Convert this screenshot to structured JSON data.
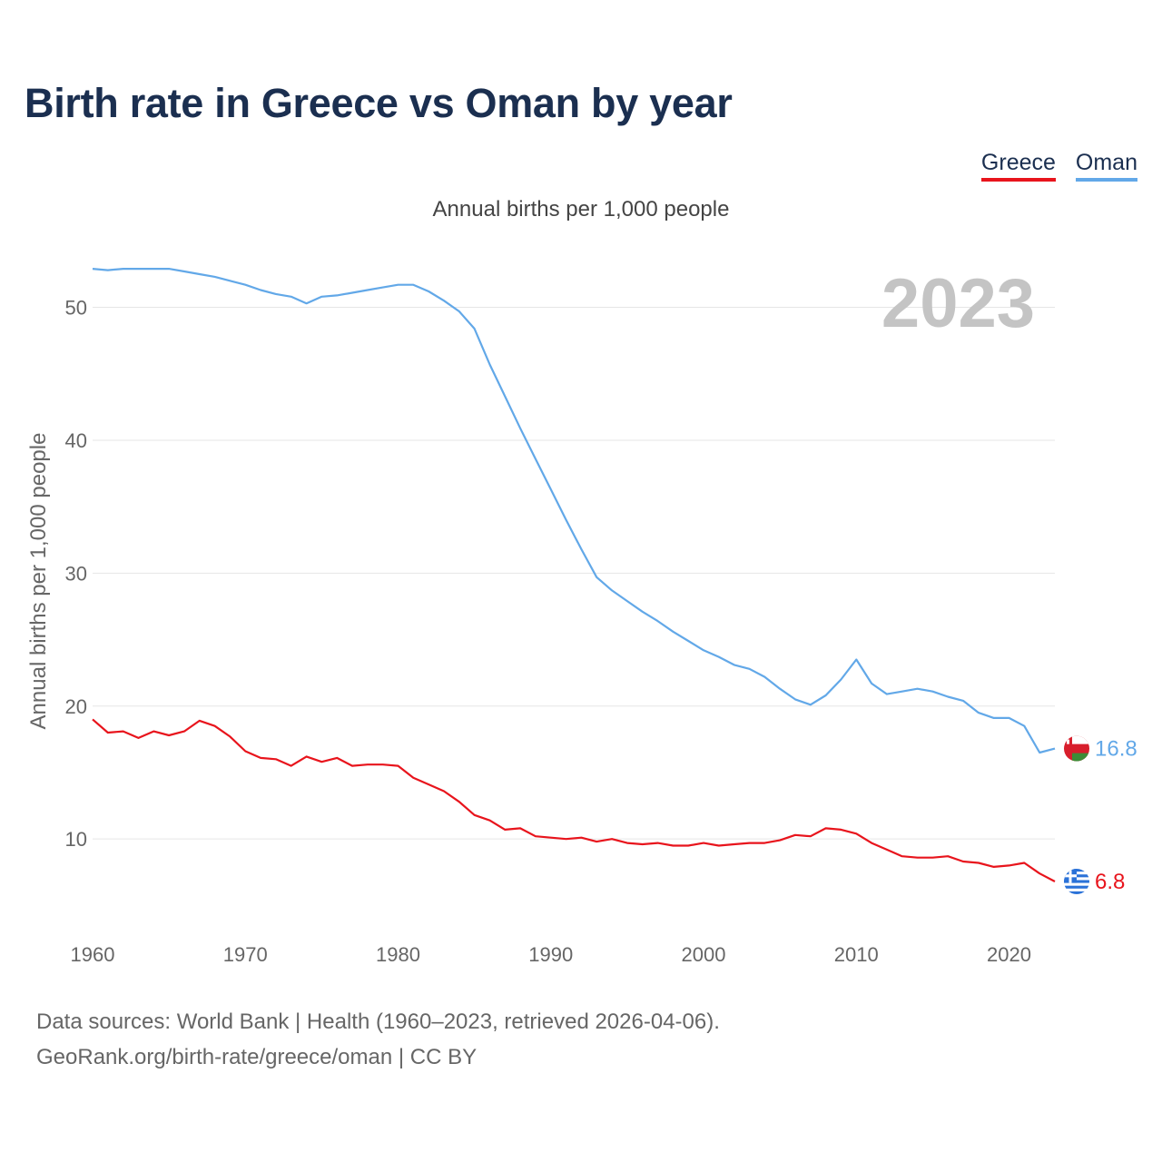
{
  "title": "Birth rate in Greece vs Oman by year",
  "subtitle": "Annual births per 1,000 people",
  "legend": [
    {
      "label": "Greece",
      "color": "#e8141c"
    },
    {
      "label": "Oman",
      "color": "#62a8e8"
    }
  ],
  "footer": {
    "line1": "Data sources: World Bank | Health (1960–2023, retrieved 2026-04-06).",
    "line2": "GeoRank.org/birth-rate/greece/oman | CC BY"
  },
  "chart_data": {
    "type": "line",
    "title": "Birth rate in Greece vs Oman by year",
    "subtitle": "Annual births per 1,000 people",
    "xlabel": "",
    "ylabel": "Annual births per 1,000 people",
    "year_highlight": "2023",
    "xlim": [
      1960,
      2023
    ],
    "ylim": [
      4,
      54
    ],
    "x_ticks": [
      1960,
      1970,
      1980,
      1990,
      2000,
      2010,
      2020
    ],
    "y_ticks": [
      10,
      20,
      30,
      40,
      50
    ],
    "grid": true,
    "x": [
      1960,
      1961,
      1962,
      1963,
      1964,
      1965,
      1966,
      1967,
      1968,
      1969,
      1970,
      1971,
      1972,
      1973,
      1974,
      1975,
      1976,
      1977,
      1978,
      1979,
      1980,
      1981,
      1982,
      1983,
      1984,
      1985,
      1986,
      1987,
      1988,
      1989,
      1990,
      1991,
      1992,
      1993,
      1994,
      1995,
      1996,
      1997,
      1998,
      1999,
      2000,
      2001,
      2002,
      2003,
      2004,
      2005,
      2006,
      2007,
      2008,
      2009,
      2010,
      2011,
      2012,
      2013,
      2014,
      2015,
      2016,
      2017,
      2018,
      2019,
      2020,
      2021,
      2022,
      2023
    ],
    "series": [
      {
        "name": "Greece",
        "color": "#e8141c",
        "end_label": "6.8",
        "values": [
          19.0,
          18.0,
          18.1,
          17.6,
          18.1,
          17.8,
          18.1,
          18.9,
          18.5,
          17.7,
          16.6,
          16.1,
          16.0,
          15.5,
          16.2,
          15.8,
          16.1,
          15.5,
          15.6,
          15.6,
          15.5,
          14.6,
          14.1,
          13.6,
          12.8,
          11.8,
          11.4,
          10.7,
          10.8,
          10.2,
          10.1,
          10.0,
          10.1,
          9.8,
          10.0,
          9.7,
          9.6,
          9.7,
          9.5,
          9.5,
          9.7,
          9.5,
          9.6,
          9.7,
          9.7,
          9.9,
          10.3,
          10.2,
          10.8,
          10.7,
          10.4,
          9.7,
          9.2,
          8.7,
          8.6,
          8.6,
          8.7,
          8.3,
          8.2,
          7.9,
          8.0,
          8.2,
          7.4,
          6.8
        ]
      },
      {
        "name": "Oman",
        "color": "#62a8e8",
        "end_label": "16.8",
        "values": [
          52.9,
          52.8,
          52.9,
          52.9,
          52.9,
          52.9,
          52.7,
          52.5,
          52.3,
          52.0,
          51.7,
          51.3,
          51.0,
          50.8,
          50.3,
          50.8,
          50.9,
          51.1,
          51.3,
          51.5,
          51.7,
          51.7,
          51.2,
          50.5,
          49.7,
          48.4,
          45.7,
          43.3,
          40.9,
          38.6,
          36.3,
          34.0,
          31.8,
          29.7,
          28.7,
          27.9,
          27.1,
          26.4,
          25.6,
          24.9,
          24.2,
          23.7,
          23.1,
          22.8,
          22.2,
          21.3,
          20.5,
          20.1,
          20.8,
          22.0,
          23.5,
          21.7,
          20.9,
          21.1,
          21.3,
          21.1,
          20.7,
          20.4,
          19.5,
          19.1,
          19.1,
          18.5,
          16.5,
          16.8
        ]
      }
    ]
  }
}
